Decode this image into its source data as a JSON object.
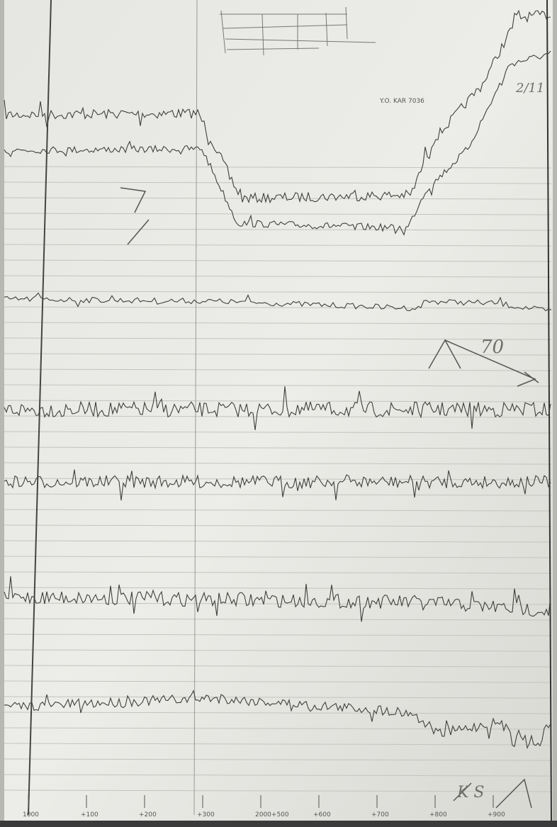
{
  "stamp": "Y.O. KAR 7036",
  "handwritten": {
    "right_top": "2/11",
    "right_mid": "70",
    "bottom_right": "K S"
  },
  "time_marks": [
    "1000",
    "+100",
    "+200",
    "+300",
    "2000+500",
    "+600",
    "+700",
    "+800",
    "+900"
  ]
}
